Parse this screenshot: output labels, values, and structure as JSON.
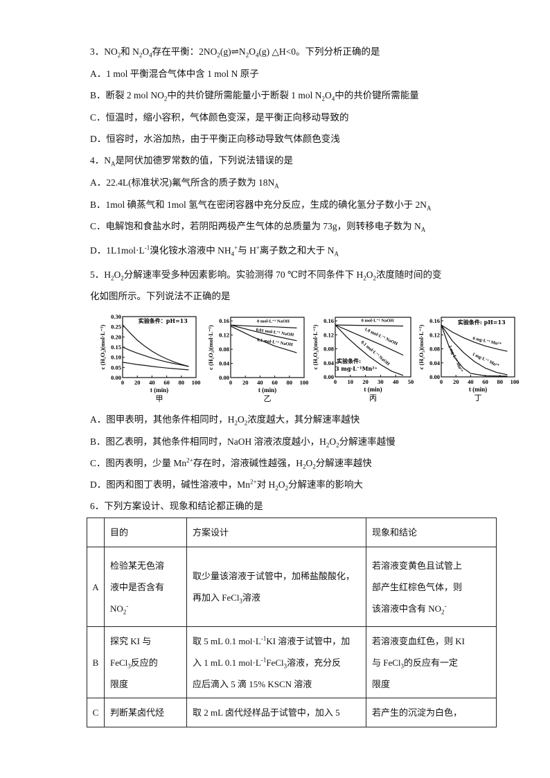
{
  "q3": {
    "stem": [
      {
        "t": "3．NO"
      },
      {
        "sub": "2"
      },
      {
        "t": "和 N"
      },
      {
        "sub": "2"
      },
      {
        "t": "O"
      },
      {
        "sub": "4"
      },
      {
        "t": "存在平衡：2NO"
      },
      {
        "sub": "2"
      },
      {
        "t": "(g)⇌N"
      },
      {
        "sub": "2"
      },
      {
        "t": "O"
      },
      {
        "sub": "4"
      },
      {
        "t": "(g) △H<0。下列分析正确的是"
      }
    ],
    "A": [
      {
        "t": "A．1 mol 平衡混合气体中含 1 mol N 原子"
      }
    ],
    "B": [
      {
        "t": "B．断裂 2 mol NO"
      },
      {
        "sub": "2"
      },
      {
        "t": "中的共价键所需能量小于断裂 1 mol N"
      },
      {
        "sub": "2"
      },
      {
        "t": "O"
      },
      {
        "sub": "4"
      },
      {
        "t": "中的共价键所需能量"
      }
    ],
    "C": [
      {
        "t": "C．恒温时，缩小容积，气体颜色变深，是平衡正向移动导致的"
      }
    ],
    "D": [
      {
        "t": "D．恒容时，水浴加热，由于平衡正向移动导致气体颜色变浅"
      }
    ]
  },
  "q4": {
    "stem": [
      {
        "t": "4．N"
      },
      {
        "sub": "A"
      },
      {
        "t": "是阿伏加德罗常数的值，下列说法错误的是"
      }
    ],
    "A": [
      {
        "t": "A．22.4L(标准状况)氟气所含的质子数为 18N"
      },
      {
        "sub": "A"
      }
    ],
    "B": [
      {
        "t": "B．1mol 碘蒸气和 1mol 氢气在密闭容器中充分反应，生成的碘化氢分子数小于 2N"
      },
      {
        "sub": "A"
      }
    ],
    "C": [
      {
        "t": "C．电解饱和食盐水时，若阴阳两极产生气体的总质量为 73g，则转移电子数为 N"
      },
      {
        "sub": "A"
      }
    ],
    "D": [
      {
        "t": "D．1L1mol·L"
      },
      {
        "sup": "-1"
      },
      {
        "t": "溴化铵水溶液中 NH"
      },
      {
        "sub": "4"
      },
      {
        "sup": "+"
      },
      {
        "t": "与 H"
      },
      {
        "sup": "+"
      },
      {
        "t": "离子数之和大于 N"
      },
      {
        "sub": "A"
      }
    ]
  },
  "q5": {
    "stem1": [
      {
        "t": "5．H"
      },
      {
        "sub": "2"
      },
      {
        "t": "O"
      },
      {
        "sub": "2"
      },
      {
        "t": "分解速率受多种因素影响。实验测得 70 ℃时不同条件下 H"
      },
      {
        "sub": "2"
      },
      {
        "t": "O"
      },
      {
        "sub": "2"
      },
      {
        "t": "浓度随时间的变"
      }
    ],
    "stem2": [
      {
        "t": "化如图所示。下列说法不正确的是"
      }
    ],
    "A": [
      {
        "t": "A．图甲表明，其他条件相同时，H"
      },
      {
        "sub": "2"
      },
      {
        "t": "O"
      },
      {
        "sub": "2"
      },
      {
        "t": "浓度越大，其分解速率越快"
      }
    ],
    "B": [
      {
        "t": "B．图乙表明，其他条件相同时，NaOH 溶液浓度越小，H"
      },
      {
        "sub": "2"
      },
      {
        "t": "O"
      },
      {
        "sub": "2"
      },
      {
        "t": "分解速率越慢"
      }
    ],
    "C": [
      {
        "t": "C．图丙表明，少量 Mn"
      },
      {
        "sup": "2+"
      },
      {
        "t": "存在时，溶液碱性越强，H"
      },
      {
        "sub": "2"
      },
      {
        "t": "O"
      },
      {
        "sub": "2"
      },
      {
        "t": "分解速率越快"
      }
    ],
    "D": [
      {
        "t": "D．图丙和图丁表明，碱性溶液中，Mn"
      },
      {
        "sup": "2+"
      },
      {
        "t": "对 H"
      },
      {
        "sub": "2"
      },
      {
        "t": "O"
      },
      {
        "sub": "2"
      },
      {
        "t": "分解速率的影响大"
      }
    ]
  },
  "q6": {
    "stem": [
      {
        "t": "6．下列方案设计、现象和结论都正确的是"
      }
    ],
    "table": {
      "headers": [
        [
          [
            {
              "t": ""
            }
          ]
        ],
        [
          [
            {
              "t": "目的"
            }
          ]
        ],
        [
          [
            {
              "t": "方案设计"
            }
          ]
        ],
        [
          [
            {
              "t": "现象和结论"
            }
          ]
        ]
      ],
      "rows": [
        [
          [
            [
              {
                "t": "A"
              }
            ]
          ],
          [
            [
              {
                "t": "检验某无色溶"
              }
            ],
            [
              {
                "t": "液中是否含有"
              }
            ],
            [
              {
                "t": "NO"
              },
              {
                "sub": "2"
              },
              {
                "sup": "-"
              }
            ]
          ],
          [
            [
              {
                "t": "取少量该溶液于试管中，加稀盐酸酸化，"
              }
            ],
            [
              {
                "t": "再加入 FeCl"
              },
              {
                "sub": "3"
              },
              {
                "t": "溶液"
              }
            ]
          ],
          [
            [
              {
                "t": "若溶液变黄色且试管上"
              }
            ],
            [
              {
                "t": "部产生红棕色气体，则"
              }
            ],
            [
              {
                "t": "该溶液中含有 NO"
              },
              {
                "sub": "2"
              },
              {
                "sup": "-"
              }
            ]
          ]
        ],
        [
          [
            [
              {
                "t": "B"
              }
            ]
          ],
          [
            [
              {
                "t": "探究 KI 与"
              }
            ],
            [
              {
                "t": "FeCl"
              },
              {
                "sub": "3"
              },
              {
                "t": "反应的"
              }
            ],
            [
              {
                "t": "限度"
              }
            ]
          ],
          [
            [
              {
                "t": "取 5 mL 0.1 mol·L"
              },
              {
                "sup": "-1"
              },
              {
                "t": "KI 溶液于试管中，加"
              }
            ],
            [
              {
                "t": "入 1 mL 0.1 mol·L"
              },
              {
                "sup": "-1"
              },
              {
                "t": "FeCl"
              },
              {
                "sub": "3"
              },
              {
                "t": "溶液，充分反"
              }
            ],
            [
              {
                "t": "应后滴入 5 滴 15% KSCN 溶液"
              }
            ]
          ],
          [
            [
              {
                "t": "若溶液变血红色，则 KI"
              }
            ],
            [
              {
                "t": "与 FeCl"
              },
              {
                "sub": "3"
              },
              {
                "t": "的反应有一定"
              }
            ],
            [
              {
                "t": "限度"
              }
            ]
          ]
        ],
        [
          [
            [
              {
                "t": "C"
              }
            ]
          ],
          [
            [
              {
                "t": "判断某卤代烃"
              }
            ]
          ],
          [
            [
              {
                "t": "取 2 mL 卤代烃样品于试管中，加入 5"
              }
            ]
          ],
          [
            [
              {
                "t": "若产生的沉淀为白色，"
              }
            ]
          ]
        ]
      ]
    }
  },
  "chart_data": [
    {
      "type": "line",
      "caption": "甲",
      "xlabel": "t (min)",
      "ylabel": "c (H₂O₂)(mol·L⁻¹)",
      "xlim": [
        0,
        100
      ],
      "ylim": [
        0,
        0.3
      ],
      "xticks": [
        0,
        20,
        40,
        60,
        80,
        100
      ],
      "yticks": [
        0.0,
        0.05,
        0.1,
        0.15,
        0.2,
        0.25,
        0.3
      ],
      "annotations": [
        {
          "text": "实验条件：pH=13",
          "x": 55,
          "y": 0.27
        }
      ],
      "series": [
        {
          "x": [
            0,
            10,
            20,
            30,
            40,
            50,
            60,
            70,
            80,
            90
          ],
          "y": [
            0.26,
            0.22,
            0.184,
            0.155,
            0.13,
            0.109,
            0.092,
            0.077,
            0.065,
            0.055
          ]
        },
        {
          "x": [
            0,
            10,
            20,
            30,
            40,
            50,
            60,
            70,
            80,
            90
          ],
          "y": [
            0.15,
            0.134,
            0.12,
            0.108,
            0.096,
            0.086,
            0.077,
            0.069,
            0.062,
            0.055
          ]
        },
        {
          "x": [
            0,
            10,
            20,
            30,
            40,
            50,
            60,
            70,
            80,
            90
          ],
          "y": [
            0.075,
            0.07,
            0.064,
            0.06,
            0.055,
            0.051,
            0.047,
            0.044,
            0.041,
            0.038
          ]
        }
      ]
    },
    {
      "type": "line",
      "caption": "乙",
      "xlabel": "t (min)",
      "ylabel": "c (H₂O₂)(mol·L⁻¹)",
      "xlim": [
        0,
        100
      ],
      "ylim": [
        0,
        0.17
      ],
      "xticks": [
        0,
        20,
        40,
        60,
        80,
        100
      ],
      "yticks": [
        0.0,
        0.04,
        0.08,
        0.12,
        0.16
      ],
      "series": [
        {
          "name": "0 mol·L⁻¹ NaOH",
          "x": [
            0,
            30,
            60,
            90
          ],
          "y": [
            0.148,
            0.145,
            0.143,
            0.14
          ],
          "label_at": [
            58,
            0.155,
            0
          ]
        },
        {
          "name": "0.01 mol·L⁻¹ NaOH",
          "x": [
            0,
            30,
            60,
            90
          ],
          "y": [
            0.148,
            0.132,
            0.117,
            0.104
          ],
          "label_at": [
            60,
            0.124,
            -8
          ]
        },
        {
          "name": "0.1 mol·L⁻¹ NaOH",
          "x": [
            0,
            30,
            60,
            90
          ],
          "y": [
            0.145,
            0.115,
            0.089,
            0.07
          ],
          "label_at": [
            60,
            0.096,
            -8
          ]
        }
      ]
    },
    {
      "type": "line",
      "caption": "丙",
      "xlabel": "t (min)",
      "ylabel": "c (H₂O₂)(mol·L⁻¹)",
      "xlim": [
        0,
        50
      ],
      "ylim": [
        0,
        0.17
      ],
      "xticks": [
        0,
        10,
        20,
        30,
        40,
        50
      ],
      "yticks": [
        0.0,
        0.04,
        0.08,
        0.12,
        0.16
      ],
      "annotations": [
        {
          "text": "实验条件:",
          "x": 9,
          "y": 0.04
        },
        {
          "text": "3 mg·L⁻¹Mn²⁺",
          "x": 14,
          "y": 0.018
        }
      ],
      "series": [
        {
          "name": "0 mol·L⁻¹ NaOH",
          "x": [
            0,
            15,
            30,
            45
          ],
          "y": [
            0.148,
            0.147,
            0.146,
            0.145
          ],
          "label_at": [
            28,
            0.157,
            0
          ]
        },
        {
          "name": "1.0 mol·L⁻¹ NaOH",
          "x": [
            0,
            15,
            30,
            45
          ],
          "y": [
            0.148,
            0.12,
            0.092,
            0.062
          ],
          "label_at": [
            30,
            0.112,
            -25
          ]
        },
        {
          "name": "0.1 mol·L⁻¹ NaOH",
          "x": [
            0,
            7.5,
            15,
            22.5,
            30,
            37.5,
            45
          ],
          "y": [
            0.148,
            0.114,
            0.085,
            0.058,
            0.035,
            0.016,
            0.004
          ],
          "label_at": [
            26,
            0.065,
            -40
          ]
        }
      ]
    },
    {
      "type": "line",
      "caption": "丁",
      "xlabel": "t (min)",
      "ylabel": "c (H₂O₂)(mol·L⁻¹)",
      "xlim": [
        0,
        100
      ],
      "ylim": [
        0,
        0.17
      ],
      "xticks": [
        0,
        20,
        40,
        60,
        80,
        100
      ],
      "yticks": [
        0.0,
        0.04,
        0.08,
        0.12,
        0.16
      ],
      "annotations": [
        {
          "text": "实验条件: pH=13",
          "x": 55,
          "y": 0.15
        }
      ],
      "series": [
        {
          "name": "0 mg·L⁻¹ Mn²⁺",
          "x": [
            0,
            15,
            30,
            45,
            60,
            75,
            90
          ],
          "y": [
            0.148,
            0.128,
            0.112,
            0.099,
            0.088,
            0.08,
            0.073
          ],
          "label_at": [
            62,
            0.098,
            -12
          ]
        },
        {
          "name": "1 mg·L⁻¹ Mn²⁺",
          "x": [
            0,
            15,
            30,
            45,
            60,
            75,
            90
          ],
          "y": [
            0.148,
            0.103,
            0.07,
            0.044,
            0.025,
            0.013,
            0.006
          ],
          "label_at": [
            60,
            0.045,
            -25
          ]
        },
        {
          "name": "3 mg·L⁻¹ Mn²⁺",
          "x": [
            0,
            10,
            20,
            30,
            40,
            60,
            90
          ],
          "y": [
            0.148,
            0.09,
            0.05,
            0.025,
            0.01,
            0.003,
            0.002
          ],
          "label_at": [
            18,
            0.05,
            -65
          ]
        }
      ]
    }
  ]
}
